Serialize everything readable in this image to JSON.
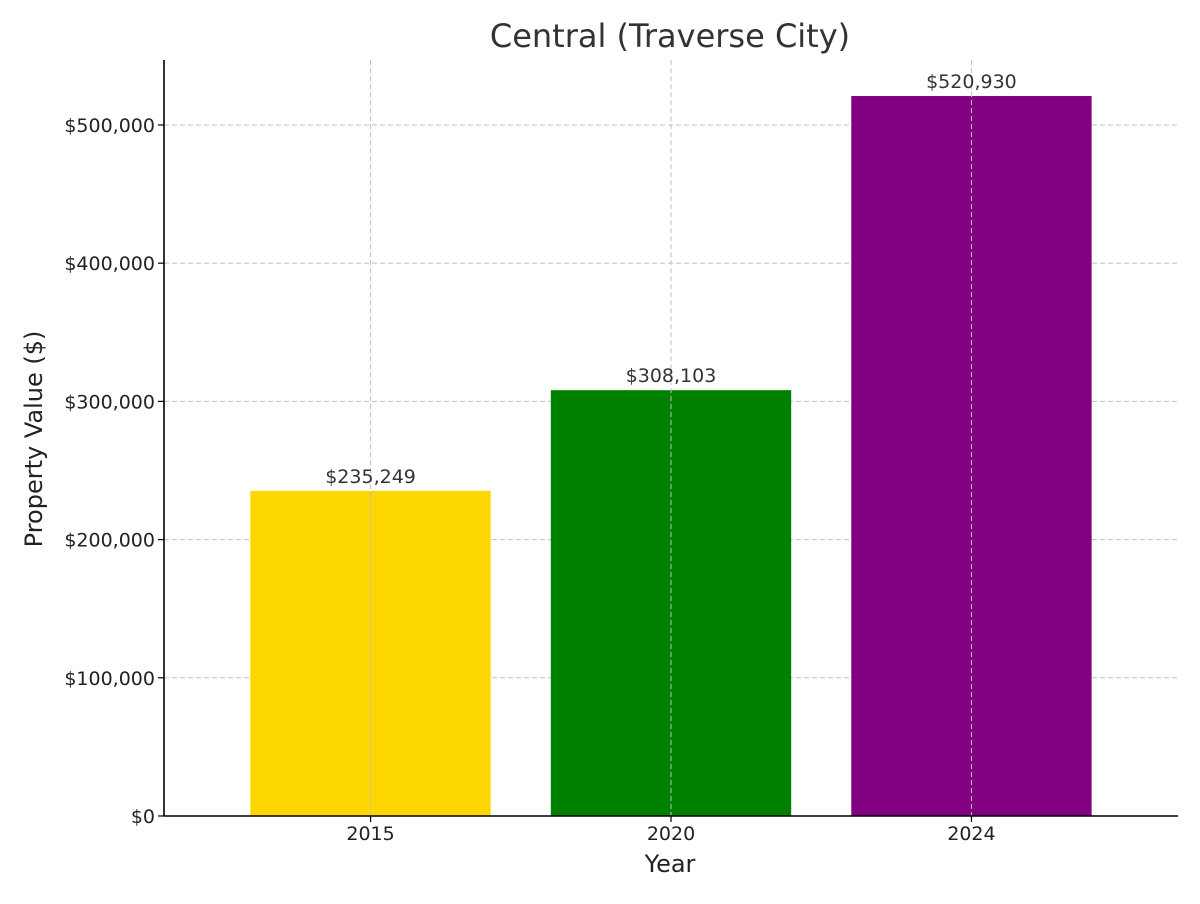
{
  "chart_data": {
    "type": "bar",
    "title": "Central (Traverse City)",
    "xlabel": "Year",
    "ylabel": "Property Value ($)",
    "categories": [
      "2015",
      "2020",
      "2024"
    ],
    "values": [
      235249,
      308103,
      520930
    ],
    "value_labels": [
      "$235,249",
      "$308,103",
      "$520,930"
    ],
    "colors": [
      "#FFD700",
      "#008000",
      "#800080"
    ],
    "ylim": [
      0,
      547000
    ],
    "yticks": [
      0,
      100000,
      200000,
      300000,
      400000,
      500000
    ],
    "ytick_labels": [
      "$0",
      "$100,000",
      "$200,000",
      "$300,000",
      "$400,000",
      "$500,000"
    ],
    "grid": true,
    "legend": "none"
  }
}
